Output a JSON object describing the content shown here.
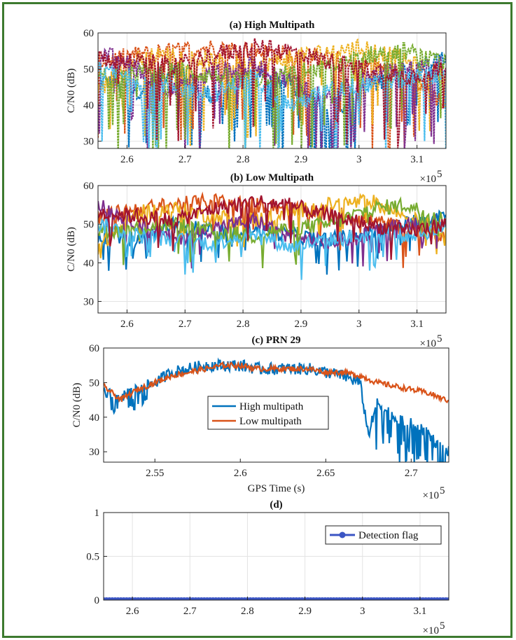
{
  "chart_data": [
    {
      "type": "scatter",
      "title": "(a) High Multipath",
      "ylabel": "C/N0 (dB)",
      "xlabel": "",
      "xlim": [
        255000,
        315000
      ],
      "ylim": [
        28,
        60
      ],
      "xticks": [
        260000,
        270000,
        280000,
        290000,
        300000,
        310000
      ],
      "xtick_labels": [
        "2.6",
        "2.7",
        "2.8",
        "2.9",
        "3",
        "3.1"
      ],
      "yticks": [
        30,
        40,
        50,
        60
      ],
      "ytick_labels": [
        "30",
        "40",
        "50",
        "60"
      ],
      "x_multiplier": "×10",
      "x_multiplier_exp": "5",
      "grid": true,
      "series": [
        {
          "color": "#0072bd",
          "values_x": [
            255000,
            262000,
            268000,
            275000,
            282000,
            288000,
            295000,
            302000,
            308000,
            315000
          ],
          "values_y": [
            47,
            44,
            50,
            42,
            49,
            46,
            38,
            45,
            50,
            53
          ]
        },
        {
          "color": "#d95319",
          "values_x": [
            255000,
            262000,
            268000,
            275000,
            282000,
            288000,
            295000,
            302000,
            308000,
            315000
          ],
          "values_y": [
            52,
            54,
            55,
            56,
            55,
            54,
            53,
            51,
            49,
            40
          ]
        },
        {
          "color": "#edb120",
          "values_x": [
            255000,
            262000,
            268000,
            275000,
            282000,
            288000,
            295000,
            302000,
            308000,
            315000
          ],
          "values_y": [
            44,
            53,
            54,
            52,
            51,
            53,
            55,
            56,
            52,
            48
          ]
        },
        {
          "color": "#7e2f8e",
          "values_x": [
            255000,
            262000,
            268000,
            275000,
            282000,
            288000,
            295000,
            302000,
            308000,
            315000
          ],
          "values_y": [
            55,
            50,
            44,
            49,
            51,
            47,
            42,
            48,
            50,
            51
          ]
        },
        {
          "color": "#77ac30",
          "values_x": [
            255000,
            262000,
            268000,
            275000,
            282000,
            288000,
            295000,
            302000,
            308000,
            315000
          ],
          "values_y": [
            48,
            49,
            50,
            48,
            47,
            49,
            50,
            54,
            55,
            51
          ]
        },
        {
          "color": "#4dbeee",
          "values_x": [
            255000,
            262000,
            268000,
            275000,
            282000,
            288000,
            295000,
            302000,
            308000,
            315000
          ],
          "values_y": [
            50,
            47,
            45,
            43,
            48,
            40,
            44,
            46,
            47,
            49
          ]
        },
        {
          "color": "#a2142f",
          "values_x": [
            255000,
            262000,
            268000,
            275000,
            282000,
            288000,
            295000,
            302000,
            308000,
            315000
          ],
          "values_y": [
            53,
            52,
            51,
            54,
            56,
            55,
            52,
            50,
            48,
            50
          ]
        }
      ]
    },
    {
      "type": "scatter",
      "title": "(b) Low Multipath",
      "ylabel": "C/N0 (dB)",
      "xlabel": "",
      "xlim": [
        255000,
        315000
      ],
      "ylim": [
        27,
        60
      ],
      "xticks": [
        260000,
        270000,
        280000,
        290000,
        300000,
        310000
      ],
      "xtick_labels": [
        "2.6",
        "2.7",
        "2.8",
        "2.9",
        "3",
        "3.1"
      ],
      "yticks": [
        30,
        40,
        50,
        60
      ],
      "ytick_labels": [
        "30",
        "40",
        "50",
        "60"
      ],
      "x_multiplier": "×10",
      "x_multiplier_exp": "5",
      "grid": true,
      "series": [
        {
          "color": "#0072bd",
          "values_x": [
            255000,
            262000,
            268000,
            275000,
            282000,
            288000,
            295000,
            302000,
            308000,
            315000
          ],
          "values_y": [
            47,
            46,
            50,
            48,
            49,
            47,
            46,
            48,
            50,
            53
          ]
        },
        {
          "color": "#d95319",
          "values_x": [
            255000,
            262000,
            268000,
            275000,
            282000,
            288000,
            295000,
            302000,
            308000,
            315000
          ],
          "values_y": [
            52,
            54,
            55,
            56,
            55,
            54,
            53,
            51,
            49,
            47
          ]
        },
        {
          "color": "#edb120",
          "values_x": [
            255000,
            262000,
            268000,
            275000,
            282000,
            288000,
            295000,
            302000,
            308000,
            315000
          ],
          "values_y": [
            44,
            53,
            54,
            52,
            51,
            53,
            55,
            56,
            52,
            48
          ]
        },
        {
          "color": "#7e2f8e",
          "values_x": [
            255000,
            262000,
            268000,
            275000,
            282000,
            288000,
            295000,
            302000,
            308000,
            315000
          ],
          "values_y": [
            55,
            50,
            46,
            49,
            51,
            47,
            45,
            48,
            50,
            51
          ]
        },
        {
          "color": "#77ac30",
          "values_x": [
            255000,
            262000,
            268000,
            275000,
            282000,
            288000,
            295000,
            302000,
            308000,
            315000
          ],
          "values_y": [
            48,
            49,
            50,
            48,
            47,
            49,
            50,
            54,
            55,
            51
          ]
        },
        {
          "color": "#4dbeee",
          "values_x": [
            255000,
            262000,
            268000,
            275000,
            282000,
            288000,
            295000,
            302000,
            308000,
            315000
          ],
          "values_y": [
            50,
            47,
            46,
            45,
            48,
            44,
            46,
            47,
            47,
            49
          ]
        },
        {
          "color": "#a2142f",
          "values_x": [
            255000,
            262000,
            268000,
            275000,
            282000,
            288000,
            295000,
            302000,
            308000,
            315000
          ],
          "values_y": [
            53,
            52,
            51,
            54,
            56,
            55,
            52,
            50,
            48,
            50
          ]
        }
      ]
    },
    {
      "type": "line",
      "title": "(c) PRN 29",
      "ylabel": "C/N0 (dB)",
      "xlabel": "GPS Time (s)",
      "xlim": [
        252000,
        272200
      ],
      "ylim": [
        27,
        60
      ],
      "xticks": [
        255000,
        260000,
        265000,
        270000
      ],
      "xtick_labels": [
        "2.55",
        "2.6",
        "2.65",
        "2.7"
      ],
      "yticks": [
        30,
        40,
        50,
        60
      ],
      "ytick_labels": [
        "30",
        "40",
        "50",
        "60"
      ],
      "x_multiplier": "×10",
      "x_multiplier_exp": "5",
      "legend_position": "center",
      "grid": false,
      "series": [
        {
          "name": "High multipath",
          "color": "#0072bd",
          "x": [
            252000,
            253000,
            254000,
            255000,
            256000,
            257000,
            258000,
            259000,
            260000,
            261000,
            262000,
            263000,
            264000,
            265000,
            266000,
            267000,
            267500,
            268000,
            269000,
            270000,
            271000,
            272000
          ],
          "y": [
            47,
            46,
            48,
            50,
            53,
            54,
            55,
            55,
            55,
            54,
            54,
            54,
            54,
            53,
            52,
            50,
            35,
            44,
            40,
            38,
            35,
            30
          ]
        },
        {
          "name": "Low multipath",
          "color": "#d95319",
          "x": [
            252000,
            253000,
            254000,
            255000,
            256000,
            257000,
            258000,
            259000,
            260000,
            261000,
            262000,
            263000,
            264000,
            265000,
            266000,
            267000,
            268000,
            269000,
            270000,
            271000,
            272000
          ],
          "y": [
            49,
            45,
            48,
            50,
            52,
            53,
            54,
            55,
            55,
            54,
            54,
            54,
            54,
            53,
            53,
            52,
            50,
            49,
            48,
            47,
            45
          ]
        }
      ]
    },
    {
      "type": "line",
      "title": "(d)",
      "ylabel": "",
      "xlabel": "",
      "xlim": [
        255000,
        315000
      ],
      "ylim": [
        0,
        1
      ],
      "xticks": [
        260000,
        270000,
        280000,
        290000,
        300000,
        310000
      ],
      "xtick_labels": [
        "2.6",
        "2.7",
        "2.8",
        "2.9",
        "3",
        "3.1"
      ],
      "yticks": [
        0,
        0.5,
        1
      ],
      "ytick_labels": [
        "0",
        "0.5",
        "1"
      ],
      "x_multiplier": "×10",
      "x_multiplier_exp": "5",
      "legend_position": "top-right",
      "grid": true,
      "series": [
        {
          "name": "Detection flag",
          "color": "#3b55c4",
          "x": [
            255000,
            315000
          ],
          "y": [
            0,
            0
          ]
        }
      ]
    }
  ]
}
